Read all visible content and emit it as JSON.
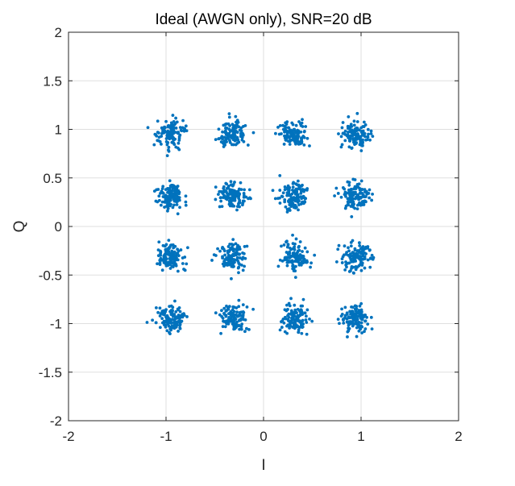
{
  "chart_data": {
    "type": "scatter",
    "title": "Ideal (AWGN only), SNR=20 dB",
    "xlabel": "I",
    "ylabel": "Q",
    "xlim": [
      -2,
      2
    ],
    "ylim": [
      -2,
      2
    ],
    "x_ticks": [
      -2,
      -1,
      0,
      1,
      2
    ],
    "x_tick_labels": [
      "-2",
      "-1",
      "0",
      "1",
      "2"
    ],
    "y_ticks": [
      -2,
      -1.5,
      -1,
      -0.5,
      0,
      0.5,
      1,
      1.5,
      2
    ],
    "y_tick_labels": [
      "-2",
      "-1.5",
      "-1",
      "-0.5",
      "0",
      "0.5",
      "1",
      "1.5",
      "2"
    ],
    "grid": true,
    "marker_color": "#0072BD",
    "constellation": {
      "levels": [
        -0.9487,
        -0.3162,
        0.3162,
        0.9487
      ],
      "points_per_symbol": 120,
      "noise_sigma": 0.07
    }
  }
}
